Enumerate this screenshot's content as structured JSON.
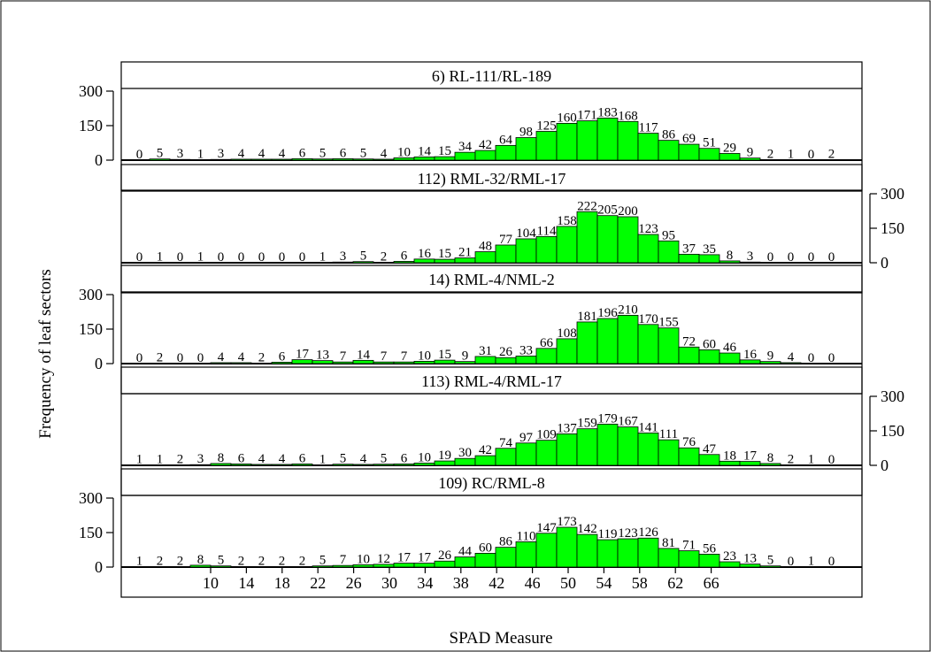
{
  "figure": {
    "ylabel": "Frequency of leaf sectors",
    "xlabel": "SPAD Measure"
  },
  "colors": {
    "bar_fill": "#00ff00",
    "bar_stroke": "#000000",
    "axis": "#000000"
  },
  "chart_data": [
    {
      "type": "bar",
      "title": "6) RL-111/RL-189",
      "y_axis_side": "left",
      "ylim": [
        0,
        300
      ],
      "yticks": [
        "300",
        "150",
        "0"
      ],
      "values": [
        0,
        5,
        3,
        1,
        3,
        4,
        4,
        4,
        6,
        5,
        6,
        5,
        4,
        10,
        14,
        15,
        34,
        42,
        64,
        98,
        125,
        160,
        171,
        183,
        168,
        117,
        86,
        69,
        51,
        29,
        9,
        2,
        1,
        0,
        2
      ]
    },
    {
      "type": "bar",
      "title": "112) RML-32/RML-17",
      "y_axis_side": "right",
      "ylim": [
        0,
        300
      ],
      "yticks": [
        "300",
        "150",
        "0"
      ],
      "values": [
        0,
        1,
        0,
        1,
        0,
        0,
        0,
        0,
        0,
        1,
        3,
        5,
        2,
        6,
        16,
        15,
        21,
        48,
        77,
        104,
        114,
        158,
        222,
        205,
        200,
        123,
        95,
        37,
        35,
        8,
        3,
        0,
        0,
        0,
        0
      ]
    },
    {
      "type": "bar",
      "title": "14) RML-4/NML-2",
      "y_axis_side": "left",
      "ylim": [
        0,
        300
      ],
      "yticks": [
        "300",
        "150",
        "0"
      ],
      "values": [
        0,
        2,
        0,
        0,
        4,
        4,
        2,
        6,
        17,
        13,
        7,
        14,
        7,
        7,
        10,
        15,
        9,
        31,
        26,
        33,
        66,
        108,
        181,
        196,
        210,
        170,
        155,
        72,
        60,
        46,
        16,
        9,
        4,
        0,
        0
      ]
    },
    {
      "type": "bar",
      "title": "113) RML-4/RML-17",
      "y_axis_side": "right",
      "ylim": [
        0,
        300
      ],
      "yticks": [
        "300",
        "150",
        "0"
      ],
      "values": [
        1,
        1,
        2,
        3,
        8,
        6,
        4,
        4,
        6,
        1,
        5,
        4,
        5,
        6,
        10,
        19,
        30,
        42,
        74,
        97,
        109,
        137,
        159,
        179,
        167,
        141,
        111,
        76,
        47,
        18,
        17,
        8,
        2,
        1,
        0
      ]
    },
    {
      "type": "bar",
      "title": "109) RC/RML-8",
      "y_axis_side": "left",
      "ylim": [
        0,
        300
      ],
      "yticks": [
        "300",
        "150",
        "0"
      ],
      "values": [
        1,
        2,
        2,
        8,
        5,
        2,
        2,
        2,
        2,
        5,
        7,
        10,
        12,
        17,
        17,
        26,
        44,
        60,
        86,
        110,
        147,
        173,
        142,
        119,
        123,
        126,
        81,
        71,
        56,
        23,
        13,
        5,
        0,
        1,
        0
      ]
    }
  ],
  "x_axis": {
    "ticks": [
      "10",
      "14",
      "18",
      "22",
      "26",
      "30",
      "34",
      "38",
      "42",
      "46",
      "50",
      "54",
      "58",
      "62",
      "66"
    ]
  }
}
